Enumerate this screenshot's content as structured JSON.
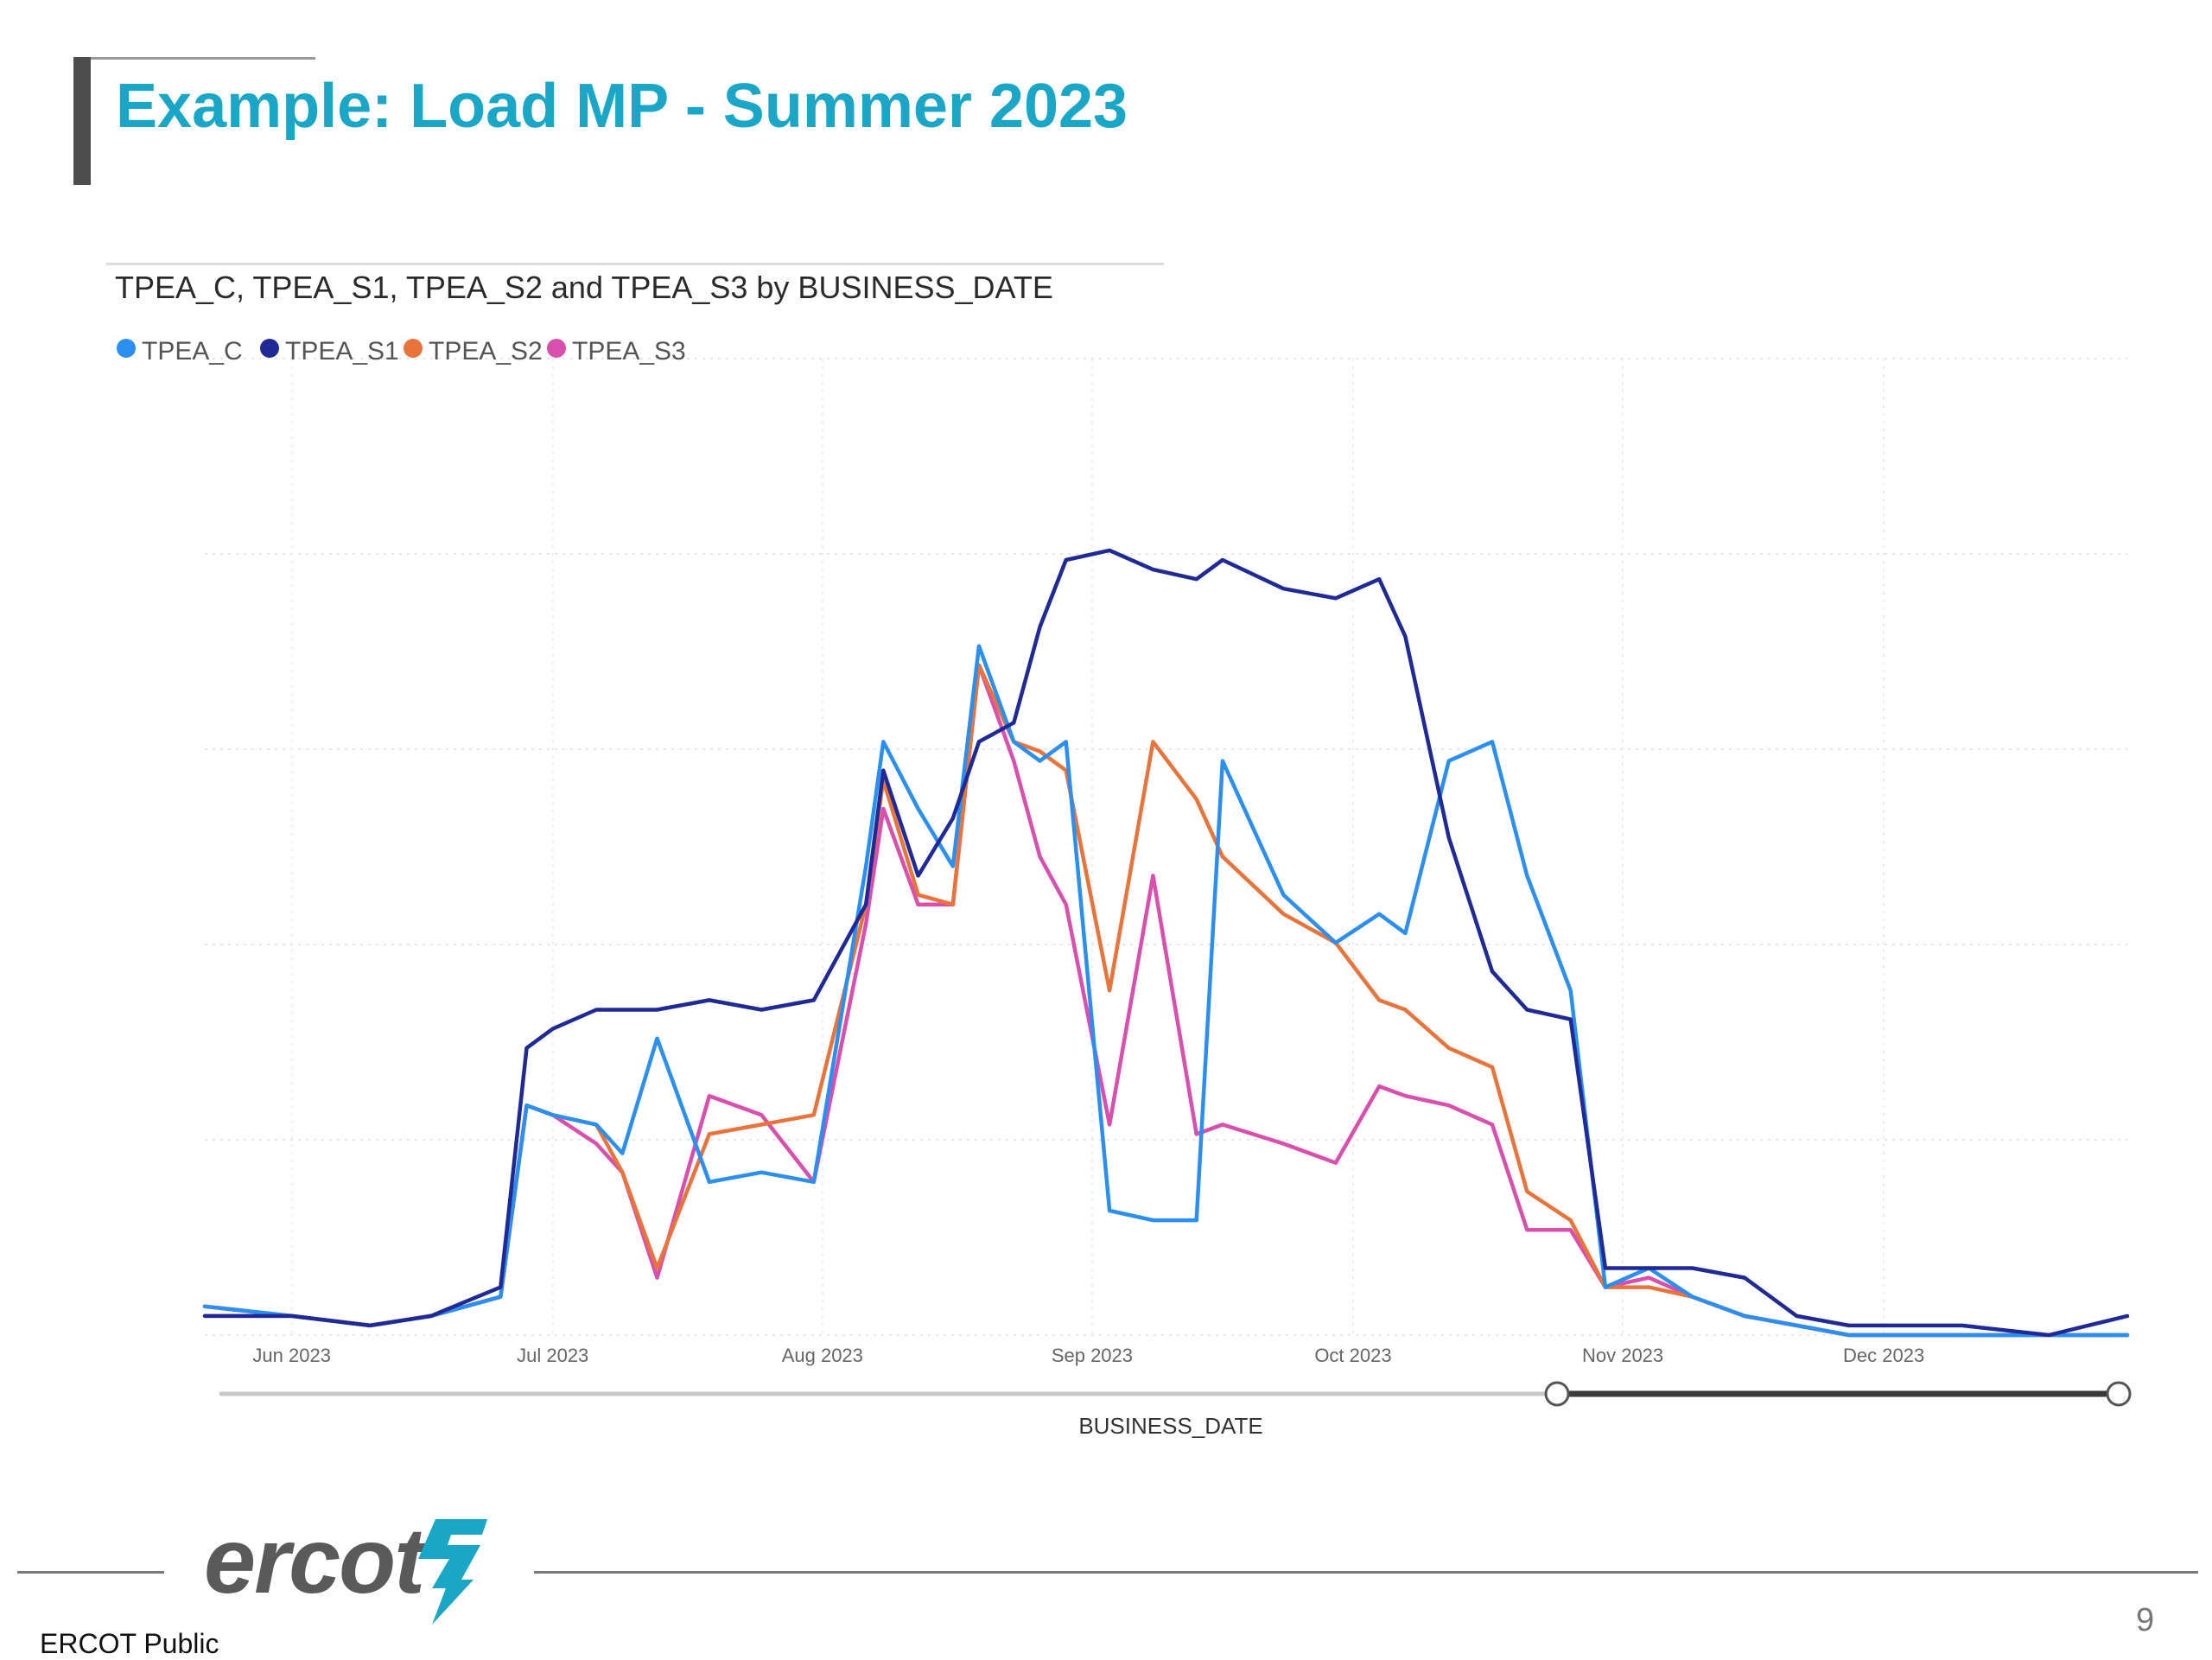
{
  "slide": {
    "title": "Example: Load MP - Summer 2023",
    "footer_label": "ERCOT Public",
    "page_number": "9",
    "logo_text": "ercot"
  },
  "colors": {
    "title": "#1aa6c6",
    "TPEA_C": "#2b8ff0",
    "TPEA_S1": "#1f2a96",
    "TPEA_S2": "#e8743c",
    "TPEA_S3": "#d94fae"
  },
  "chart_data": {
    "type": "line",
    "title": "TPEA_C, TPEA_S1, TPEA_S2 and TPEA_S3 by BUSINESS_DATE",
    "xlabel": "BUSINESS_DATE",
    "ylabel": "",
    "y_axis_labels_shown": false,
    "grid": "dotted",
    "legend_position": "top-left",
    "x_tick_labels": [
      "Jun 2023",
      "Jul 2023",
      "Aug 2023",
      "Sep 2023",
      "Oct 2023",
      "Nov 2023",
      "Dec 2023"
    ],
    "x_tick_dates": [
      "2023-06-01",
      "2023-07-01",
      "2023-08-01",
      "2023-09-01",
      "2023-10-01",
      "2023-11-01",
      "2023-12-01"
    ],
    "range_slider": {
      "start": "2023-10-26",
      "end": "2023-12-31"
    },
    "x": [
      "2023-05-22",
      "2023-06-01",
      "2023-06-10",
      "2023-06-17",
      "2023-06-25",
      "2023-06-28",
      "2023-07-01",
      "2023-07-06",
      "2023-07-09",
      "2023-07-13",
      "2023-07-19",
      "2023-07-25",
      "2023-07-31",
      "2023-08-06",
      "2023-08-08",
      "2023-08-12",
      "2023-08-16",
      "2023-08-19",
      "2023-08-23",
      "2023-08-26",
      "2023-08-29",
      "2023-09-03",
      "2023-09-08",
      "2023-09-13",
      "2023-09-16",
      "2023-09-23",
      "2023-09-29",
      "2023-10-04",
      "2023-10-07",
      "2023-10-12",
      "2023-10-17",
      "2023-10-21",
      "2023-10-26",
      "2023-10-30",
      "2023-11-04",
      "2023-11-09",
      "2023-11-15",
      "2023-11-21",
      "2023-11-27",
      "2023-12-02",
      "2023-12-10",
      "2023-12-20",
      "2023-12-29"
    ],
    "y_scale": {
      "min": 0,
      "max": 100,
      "note": "no y-axis labels shown; values relative"
    },
    "series": [
      {
        "name": "TPEA_C",
        "values": [
          3,
          2,
          1,
          2,
          4,
          24,
          23,
          22,
          19,
          31,
          16,
          17,
          16,
          49,
          62,
          55,
          49,
          72,
          62,
          60,
          62,
          13,
          12,
          12,
          60,
          46,
          41,
          44,
          42,
          60,
          62,
          48,
          36,
          5,
          7,
          4,
          2,
          1,
          0,
          0,
          0,
          0,
          0
        ]
      },
      {
        "name": "TPEA_S1",
        "values": [
          2,
          2,
          1,
          2,
          5,
          30,
          32,
          34,
          34,
          34,
          35,
          34,
          35,
          45,
          59,
          48,
          54,
          62,
          64,
          74,
          81,
          82,
          80,
          79,
          81,
          78,
          77,
          79,
          73,
          52,
          38,
          34,
          33,
          7,
          7,
          7,
          6,
          2,
          1,
          1,
          1,
          0,
          2
        ]
      },
      {
        "name": "TPEA_S2",
        "values": [
          2,
          2,
          1,
          2,
          4,
          24,
          23,
          22,
          17,
          7,
          21,
          22,
          23,
          45,
          58,
          46,
          45,
          70,
          62,
          61,
          59,
          36,
          62,
          56,
          50,
          44,
          41,
          35,
          34,
          30,
          28,
          15,
          12,
          5,
          5,
          4,
          2,
          1,
          0,
          0,
          0,
          0,
          0
        ]
      },
      {
        "name": "TPEA_S3",
        "values": [
          3,
          2,
          1,
          2,
          4,
          24,
          23,
          20,
          17,
          6,
          25,
          23,
          16,
          43,
          55,
          45,
          45,
          70,
          60,
          50,
          45,
          22,
          48,
          21,
          22,
          20,
          18,
          26,
          25,
          24,
          22,
          11,
          11,
          5,
          6,
          4,
          2,
          1,
          0,
          0,
          0,
          0,
          0
        ]
      }
    ]
  }
}
